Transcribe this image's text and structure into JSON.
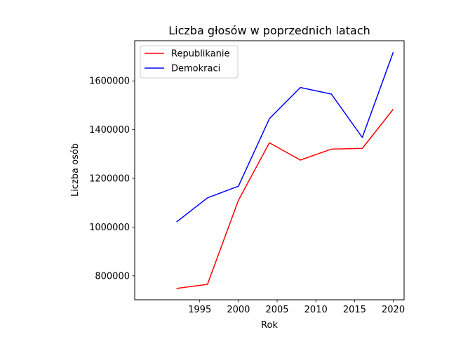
{
  "chart_data": {
    "type": "line",
    "title": "Liczba głosów w poprzednich latach",
    "xlabel": "Rok",
    "ylabel": "Liczba osób",
    "x": [
      1992,
      1996,
      2000,
      2004,
      2008,
      2012,
      2016,
      2020
    ],
    "xlim": [
      1986.6,
      2021.4
    ],
    "ylim": [
      701500,
      1765000
    ],
    "xticks": [
      1995,
      2000,
      2005,
      2010,
      2015,
      2020
    ],
    "yticks": [
      800000,
      1000000,
      1200000,
      1400000,
      1600000
    ],
    "grid": false,
    "legend_position": "top-left",
    "series": [
      {
        "name": "Republikanie",
        "color": "#ff0000",
        "values": [
          748000,
          765000,
          1110000,
          1346000,
          1275000,
          1320000,
          1323000,
          1484000
        ]
      },
      {
        "name": "Demokraci",
        "color": "#0000ff",
        "values": [
          1021000,
          1120000,
          1168000,
          1445000,
          1573000,
          1546000,
          1368000,
          1718000
        ]
      }
    ]
  }
}
